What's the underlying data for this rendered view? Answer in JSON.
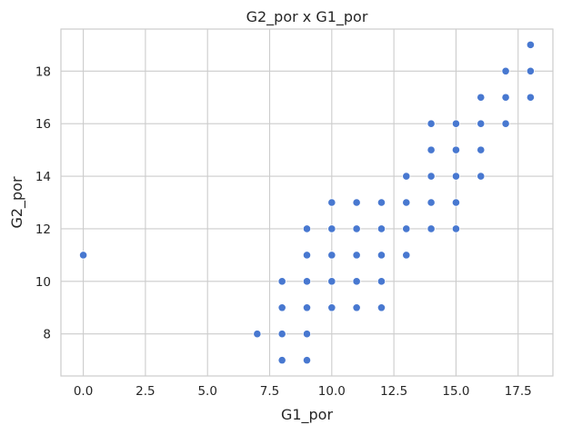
{
  "chart_data": {
    "type": "scatter",
    "title": "G2_por x G1_por",
    "xlabel": "G1_por",
    "ylabel": "G2_por",
    "xlim": [
      -0.9,
      18.9
    ],
    "ylim": [
      6.4,
      19.6
    ],
    "xticks": [
      0.0,
      2.5,
      5.0,
      7.5,
      10.0,
      12.5,
      15.0,
      17.5
    ],
    "xtick_labels": [
      "0.0",
      "2.5",
      "5.0",
      "7.5",
      "10.0",
      "12.5",
      "15.0",
      "17.5"
    ],
    "yticks": [
      8,
      10,
      12,
      14,
      16,
      18
    ],
    "ytick_labels": [
      "8",
      "10",
      "12",
      "14",
      "16",
      "18"
    ],
    "grid": true,
    "marker_color": "#4878d0",
    "points": [
      [
        0,
        11
      ],
      [
        7,
        8
      ],
      [
        8,
        7
      ],
      [
        8,
        8
      ],
      [
        8,
        9
      ],
      [
        8,
        10
      ],
      [
        9,
        7
      ],
      [
        9,
        8
      ],
      [
        9,
        9
      ],
      [
        9,
        10
      ],
      [
        9,
        11
      ],
      [
        9,
        12
      ],
      [
        10,
        9
      ],
      [
        10,
        10
      ],
      [
        10,
        11
      ],
      [
        10,
        12
      ],
      [
        10,
        13
      ],
      [
        11,
        9
      ],
      [
        11,
        10
      ],
      [
        11,
        11
      ],
      [
        11,
        12
      ],
      [
        11,
        13
      ],
      [
        12,
        9
      ],
      [
        12,
        10
      ],
      [
        12,
        11
      ],
      [
        12,
        12
      ],
      [
        12,
        13
      ],
      [
        13,
        11
      ],
      [
        13,
        12
      ],
      [
        13,
        13
      ],
      [
        13,
        14
      ],
      [
        14,
        12
      ],
      [
        14,
        13
      ],
      [
        14,
        14
      ],
      [
        14,
        15
      ],
      [
        14,
        16
      ],
      [
        15,
        12
      ],
      [
        15,
        13
      ],
      [
        15,
        14
      ],
      [
        15,
        15
      ],
      [
        15,
        16
      ],
      [
        16,
        14
      ],
      [
        16,
        15
      ],
      [
        16,
        16
      ],
      [
        16,
        17
      ],
      [
        17,
        16
      ],
      [
        17,
        17
      ],
      [
        17,
        18
      ],
      [
        18,
        17
      ],
      [
        18,
        18
      ],
      [
        18,
        19
      ]
    ]
  }
}
